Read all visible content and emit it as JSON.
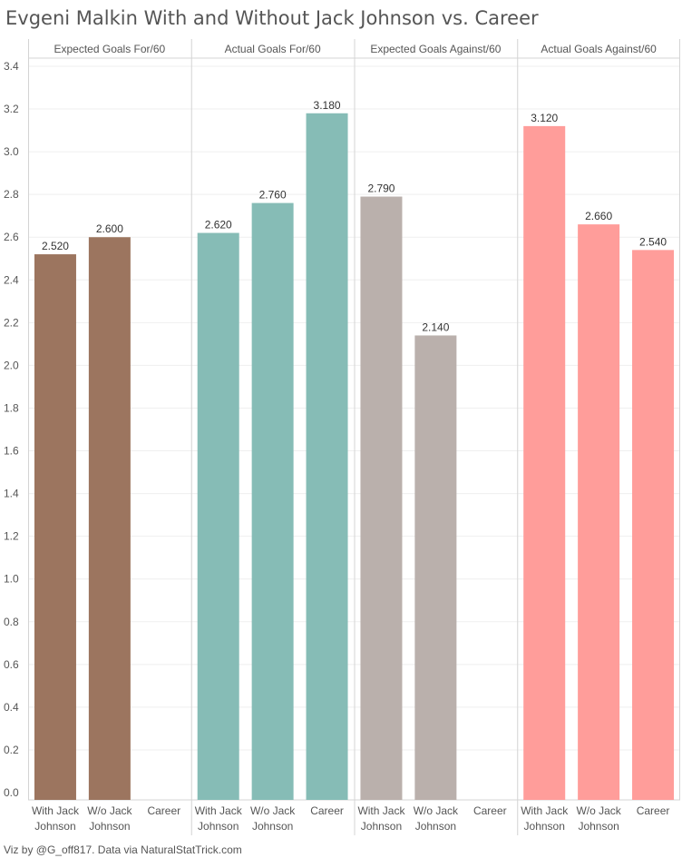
{
  "title": "Evgeni Malkin With and Without Jack Johnson vs. Career",
  "footer": "Viz by @G_off817.  Data via NaturalStatTrick.com",
  "chart_data": {
    "type": "bar",
    "ylim": [
      0,
      3.4
    ],
    "yticks": [
      "0.0",
      "0.2",
      "0.4",
      "0.6",
      "0.8",
      "1.0",
      "1.2",
      "1.4",
      "1.6",
      "1.8",
      "2.0",
      "2.2",
      "2.4",
      "2.6",
      "2.8",
      "3.0",
      "3.2",
      "3.4"
    ],
    "grid": true,
    "categories": [
      [
        "With Jack",
        "Johnson"
      ],
      [
        "W/o Jack",
        "Johnson"
      ],
      [
        "Career"
      ]
    ],
    "panels": [
      {
        "name": "Expected Goals For/60",
        "color": "#9c755f",
        "values": [
          2.52,
          2.6,
          null
        ],
        "labels": [
          "2.520",
          "2.600",
          ""
        ]
      },
      {
        "name": "Actual Goals For/60",
        "color": "#86bcb6",
        "values": [
          2.62,
          2.76,
          3.18
        ],
        "labels": [
          "2.620",
          "2.760",
          "3.180"
        ]
      },
      {
        "name": "Expected Goals Against/60",
        "color": "#bab0ac",
        "values": [
          2.79,
          2.14,
          null
        ],
        "labels": [
          "2.790",
          "2.140",
          ""
        ]
      },
      {
        "name": "Actual Goals Against/60",
        "color": "#ff9d9a",
        "values": [
          3.12,
          2.66,
          2.54
        ],
        "labels": [
          "3.120",
          "2.660",
          "2.540"
        ]
      }
    ]
  }
}
